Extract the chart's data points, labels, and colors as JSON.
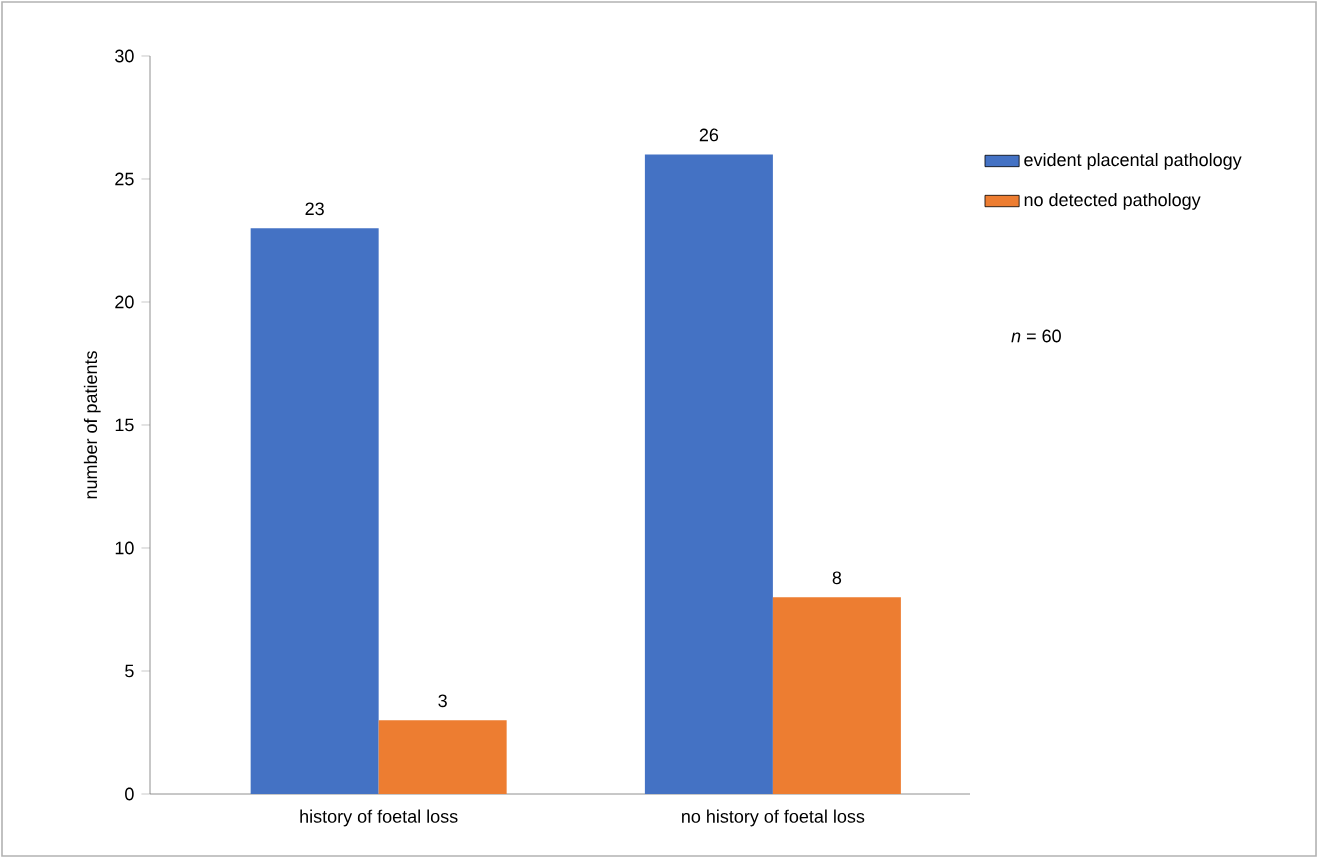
{
  "chart_data": {
    "type": "bar",
    "ylabel": "number of patients",
    "categories": [
      "history of foetal loss",
      "no history of foetal loss"
    ],
    "series": [
      {
        "name": "evident placental pathology",
        "color": "#4472c4",
        "values": [
          23,
          26
        ]
      },
      {
        "name": "no detected pathology",
        "color": "#ed7d31",
        "values": [
          3,
          8
        ]
      }
    ],
    "ylim": [
      0,
      30
    ],
    "yticks": [
      0,
      5,
      10,
      15,
      20,
      25,
      30
    ],
    "grid": false,
    "legend": "right",
    "data_labels": true,
    "annotations": [
      "*n* = 60"
    ]
  }
}
